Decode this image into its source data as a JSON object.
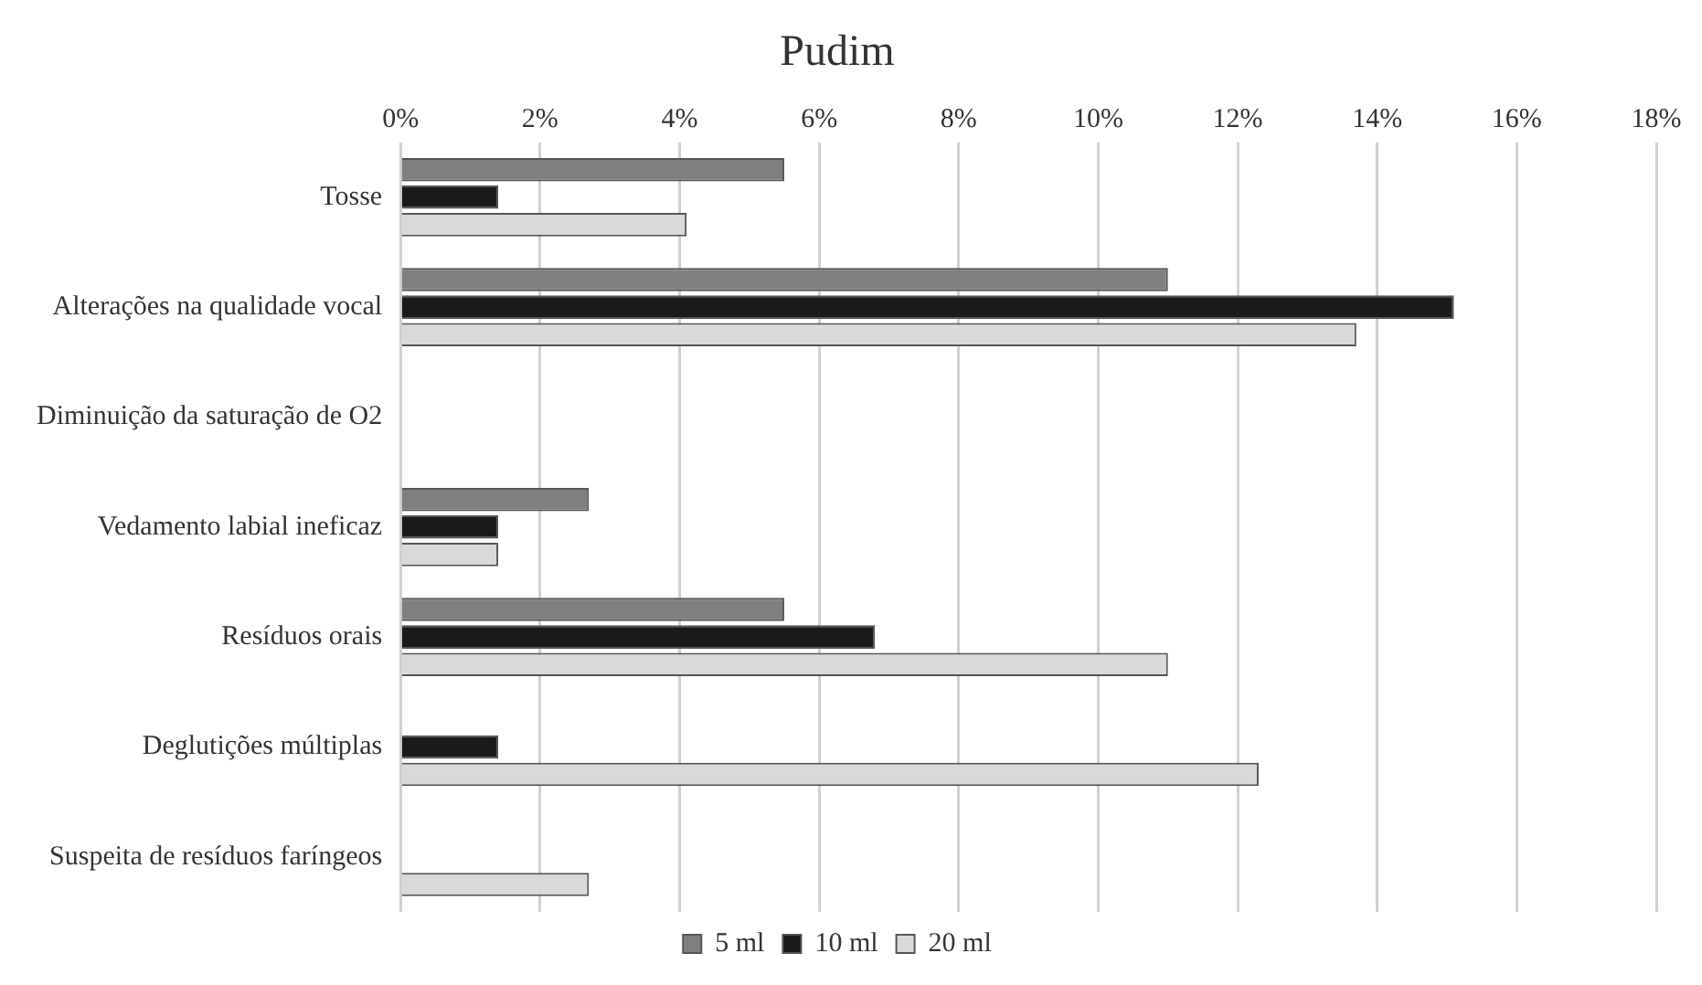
{
  "chart_data": {
    "type": "bar",
    "title": "Pudim",
    "orientation": "horizontal",
    "categories": [
      "Tosse",
      "Alterações na qualidade vocal",
      "Diminuição da saturação de O2",
      "Vedamento labial ineficaz",
      "Resíduos orais",
      "Deglutições múltiplas",
      "Suspeita de resíduos faríngeos"
    ],
    "series": [
      {
        "name": "5 ml",
        "color": "#7f7f7f",
        "values": [
          5.5,
          11.0,
          0,
          2.7,
          5.5,
          0,
          0
        ]
      },
      {
        "name": "10 ml",
        "color": "#1a1a1a",
        "values": [
          1.4,
          15.1,
          0,
          1.4,
          6.8,
          1.4,
          0
        ]
      },
      {
        "name": "20 ml",
        "color": "#d9d9d9",
        "values": [
          4.1,
          13.7,
          0,
          1.4,
          11.0,
          12.3,
          2.7
        ]
      }
    ],
    "xlim": [
      0,
      18
    ],
    "xticks": [
      {
        "value": 0,
        "label": "0%"
      },
      {
        "value": 2,
        "label": "2%"
      },
      {
        "value": 4,
        "label": "4%"
      },
      {
        "value": 6,
        "label": "6%"
      },
      {
        "value": 8,
        "label": "8%"
      },
      {
        "value": 10,
        "label": "10%"
      },
      {
        "value": 12,
        "label": "12%"
      },
      {
        "value": 14,
        "label": "14%"
      },
      {
        "value": 16,
        "label": "16%"
      },
      {
        "value": 18,
        "label": "18%"
      }
    ],
    "grid": "x",
    "legend": "bottom"
  }
}
